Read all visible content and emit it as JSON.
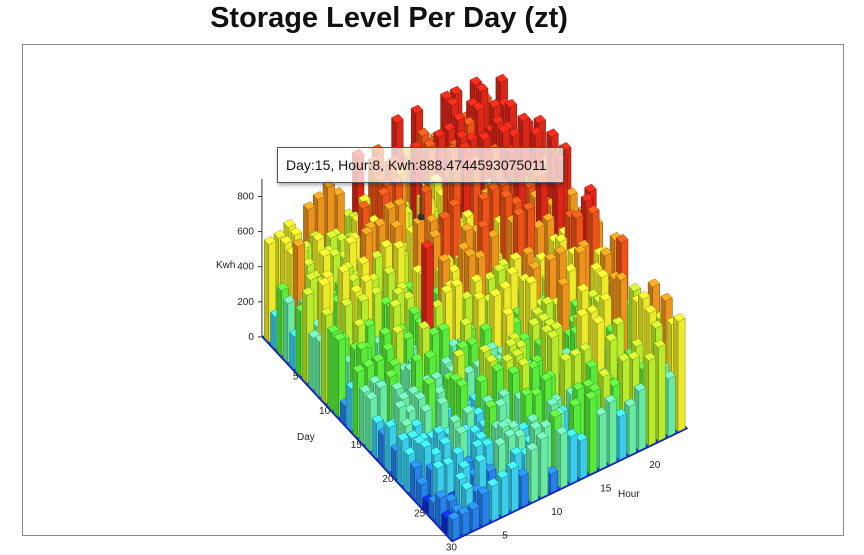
{
  "chart_data": {
    "type": "bar3d",
    "title": "Storage Level Per Day (zt)",
    "xlabel": "Hour",
    "ylabel": "Day",
    "zlabel": "Kwh",
    "x_range": [
      1,
      24
    ],
    "y_range": [
      1,
      30
    ],
    "z_range": [
      0,
      900
    ],
    "x_ticks": [
      5,
      10,
      15,
      20
    ],
    "y_ticks": [
      5,
      10,
      15,
      20,
      25,
      30
    ],
    "z_ticks": [
      0,
      200,
      400,
      600,
      800
    ],
    "colormap": [
      "#1030e0",
      "#2a8cff",
      "#40e0ff",
      "#70ffb0",
      "#60ff40",
      "#c8ff30",
      "#ffff30",
      "#ffa020",
      "#ff5a1a",
      "#ee2a1a"
    ],
    "tooltip": {
      "day": 15,
      "hour": 8,
      "kwh": 888.4744593075011,
      "text": "Day:15, Hour:8, Kwh:888.4744593075011"
    }
  }
}
